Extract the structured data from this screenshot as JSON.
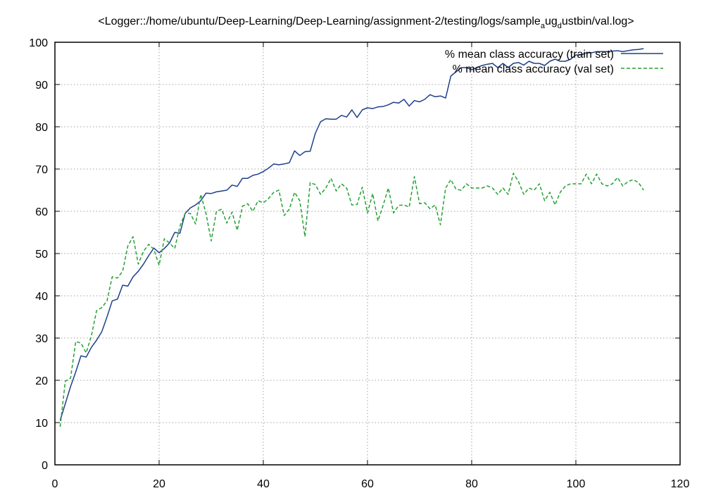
{
  "chart_data": {
    "type": "line",
    "title": "<Logger::/home/ubuntu/Deep-Learning/Deep-Learning/assignment-2/testing/logs/sample",
    "title_sub1": "a",
    "title_mid": "ug",
    "title_sub2": "d",
    "title_end": "ustbin/val.log>",
    "xlim": [
      0,
      120
    ],
    "ylim": [
      0,
      100
    ],
    "x_ticks": [
      0,
      20,
      40,
      60,
      80,
      100,
      120
    ],
    "y_ticks": [
      0,
      10,
      20,
      30,
      40,
      50,
      60,
      70,
      80,
      90,
      100
    ],
    "grid": true,
    "legend_position": "top-right",
    "series": [
      {
        "name": "% mean class accuracy (train set)",
        "color": "#1f3f8c",
        "style": "solid",
        "x": [
          1,
          2,
          3,
          4,
          5,
          6,
          7,
          8,
          9,
          10,
          11,
          12,
          13,
          14,
          15,
          16,
          17,
          18,
          19,
          20,
          21,
          22,
          23,
          24,
          25,
          26,
          27,
          28,
          29,
          30,
          31,
          32,
          33,
          34,
          35,
          36,
          37,
          38,
          39,
          40,
          41,
          42,
          43,
          44,
          45,
          46,
          47,
          48,
          49,
          50,
          51,
          52,
          53,
          54,
          55,
          56,
          57,
          58,
          59,
          60,
          61,
          62,
          63,
          64,
          65,
          66,
          67,
          68,
          69,
          70,
          71,
          72,
          73,
          74,
          75,
          76,
          77,
          78,
          79,
          80,
          81,
          82,
          83,
          84,
          85,
          86,
          87,
          88,
          89,
          90,
          91,
          92,
          93,
          94,
          95,
          96,
          97,
          98,
          99,
          100,
          101,
          102,
          103,
          104,
          105,
          106,
          107,
          108,
          109,
          110,
          111,
          112,
          113
        ],
        "y": [
          10.5,
          14.5,
          18.5,
          22,
          25.8,
          25.5,
          27.8,
          29.5,
          31.5,
          35,
          38.8,
          39.2,
          42.5,
          42.3,
          44.5,
          45.8,
          47.5,
          49.5,
          51.3,
          50.2,
          51.2,
          52.5,
          55,
          54.8,
          59.5,
          60.8,
          61.5,
          62.5,
          64.3,
          64.2,
          64.6,
          64.8,
          65,
          66.2,
          65.9,
          67.8,
          67.8,
          68.5,
          68.8,
          69.4,
          70.2,
          71.2,
          71.0,
          71.2,
          71.5,
          74.3,
          73.2,
          74.1,
          74.2,
          78.5,
          81.2,
          81.9,
          81.8,
          81.8,
          82.7,
          82.3,
          84,
          82.2,
          84,
          84.5,
          84.3,
          84.7,
          84.8,
          85.2,
          85.8,
          85.6,
          86.5,
          84.9,
          86.2,
          85.9,
          86.5,
          87.6,
          87.1,
          87.3,
          86.8,
          92,
          93,
          94,
          94,
          93.5,
          94,
          94.5,
          94.8,
          95,
          94,
          95,
          94,
          95,
          95.2,
          94.6,
          95.5,
          95,
          95,
          94.5,
          95.5,
          96,
          95.5,
          95.5,
          96,
          97,
          97,
          97.5,
          97.5,
          97.8,
          97.8,
          97.8,
          97.9,
          98,
          97.8,
          98,
          98.2,
          98.3,
          98.5
        ]
      },
      {
        "name": "% mean class accuracy (val set)",
        "color": "#26a034",
        "style": "dashed",
        "x": [
          1,
          2,
          3,
          4,
          5,
          6,
          7,
          8,
          9,
          10,
          11,
          12,
          13,
          14,
          15,
          16,
          17,
          18,
          19,
          20,
          21,
          22,
          23,
          24,
          25,
          26,
          27,
          28,
          29,
          30,
          31,
          32,
          33,
          34,
          35,
          36,
          37,
          38,
          39,
          40,
          41,
          42,
          43,
          44,
          45,
          46,
          47,
          48,
          49,
          50,
          51,
          52,
          53,
          54,
          55,
          56,
          57,
          58,
          59,
          60,
          61,
          62,
          63,
          64,
          65,
          66,
          67,
          68,
          69,
          70,
          71,
          72,
          73,
          74,
          75,
          76,
          77,
          78,
          79,
          80,
          81,
          82,
          83,
          84,
          85,
          86,
          87,
          88,
          89,
          90,
          91,
          92,
          93,
          94,
          95,
          96,
          97,
          98,
          99,
          100,
          101,
          102,
          103,
          104,
          105,
          106,
          107,
          108,
          109,
          110,
          111,
          112,
          113
        ],
        "y": [
          9,
          19.8,
          20.5,
          29.2,
          28.8,
          26.5,
          30.5,
          36.5,
          37.2,
          38.8,
          44.5,
          44.2,
          45.8,
          51.8,
          54,
          47.5,
          50.5,
          52.2,
          51,
          47.2,
          53.5,
          52.5,
          51.2,
          56.5,
          59.5,
          59.5,
          57,
          64,
          59.5,
          53,
          60,
          60.5,
          57.2,
          59.8,
          55.5,
          61.2,
          61.8,
          60,
          62.5,
          62,
          63,
          64.5,
          65,
          59,
          60.5,
          64.5,
          62.5,
          54,
          66.8,
          66.3,
          64,
          65.5,
          67.8,
          64.8,
          66.5,
          65.5,
          61.5,
          61.6,
          65.7,
          59.6,
          64.2,
          57.7,
          61.4,
          65.5,
          59.6,
          61.4,
          61.5,
          61,
          68.2,
          61.8,
          62,
          60.6,
          61.5,
          56.8,
          65.5,
          67.5,
          65.2,
          65,
          66.5,
          65.5,
          65.5,
          65.5,
          66,
          65.5,
          64,
          65.5,
          64,
          69,
          67,
          64,
          65.5,
          65,
          66.5,
          62.5,
          64.5,
          61.5,
          64.5,
          66,
          66.5,
          66.5,
          66.5,
          68.8,
          66.5,
          68.8,
          66.5,
          66,
          66.5,
          68,
          66,
          67,
          67.5,
          66.8,
          65
        ]
      }
    ]
  }
}
